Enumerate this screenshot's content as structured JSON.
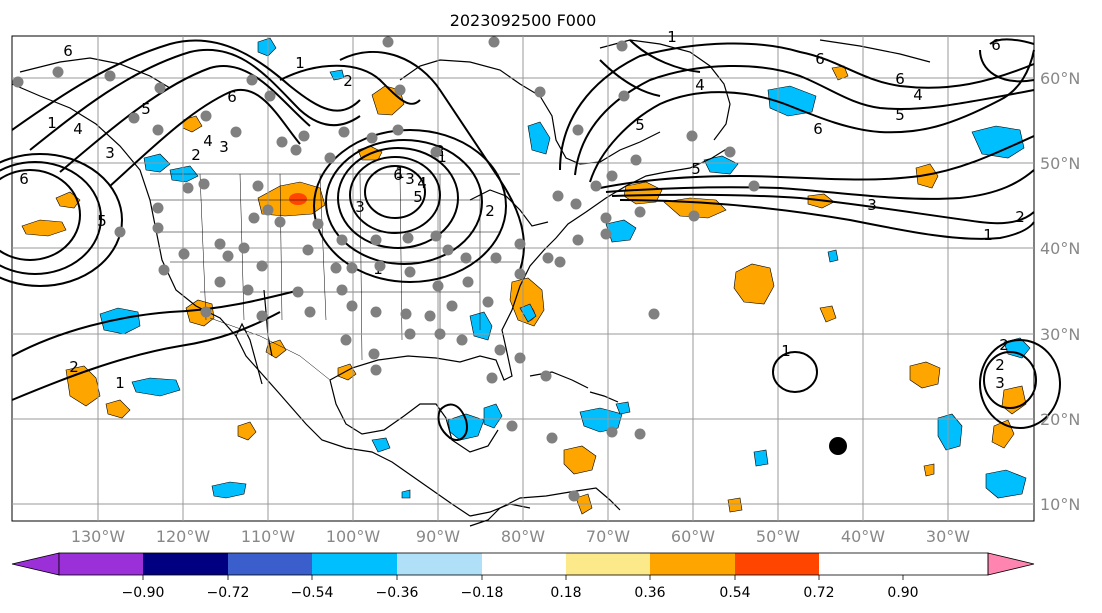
{
  "title": "2023092500 F000",
  "lat_labels": [
    "60°N",
    "50°N",
    "40°N",
    "30°N",
    "20°N",
    "10°N"
  ],
  "lon_labels": [
    "130°W",
    "120°W",
    "110°W",
    "100°W",
    "90°W",
    "80°W",
    "70°W",
    "60°W",
    "50°W",
    "40°W",
    "30°W"
  ],
  "colorbar": {
    "tick_labels": [
      "−0.90",
      "−0.72",
      "−0.54",
      "−0.36",
      "−0.18",
      "0.18",
      "0.36",
      "0.54",
      "0.72",
      "0.90"
    ],
    "colors": [
      "#9b30d9",
      "#000080",
      "#3a5fcd",
      "#00bfff",
      "#b0e0f8",
      "#ffffff",
      "#fce98a",
      "#ffa500",
      "#ff4500",
      "#b22222",
      "#ff85b0"
    ],
    "extend": "both"
  },
  "contour_labels": [
    "6",
    "1",
    "2",
    "5",
    "4",
    "6",
    "3",
    "2",
    "1",
    "6",
    "5",
    "4",
    "3",
    "1",
    "1",
    "2",
    "3",
    "4",
    "6",
    "5",
    "1",
    "2",
    "3",
    "6",
    "4",
    "5",
    "6",
    "5",
    "4",
    "3",
    "2",
    "1",
    "1",
    "2",
    "6",
    "1",
    "5",
    "6",
    "2",
    "3",
    "1",
    "2"
  ],
  "colors": {
    "land": "#ffffff",
    "coast": "#000000",
    "grid": "#999999",
    "stations": "#808080",
    "marker": "#000000"
  }
}
